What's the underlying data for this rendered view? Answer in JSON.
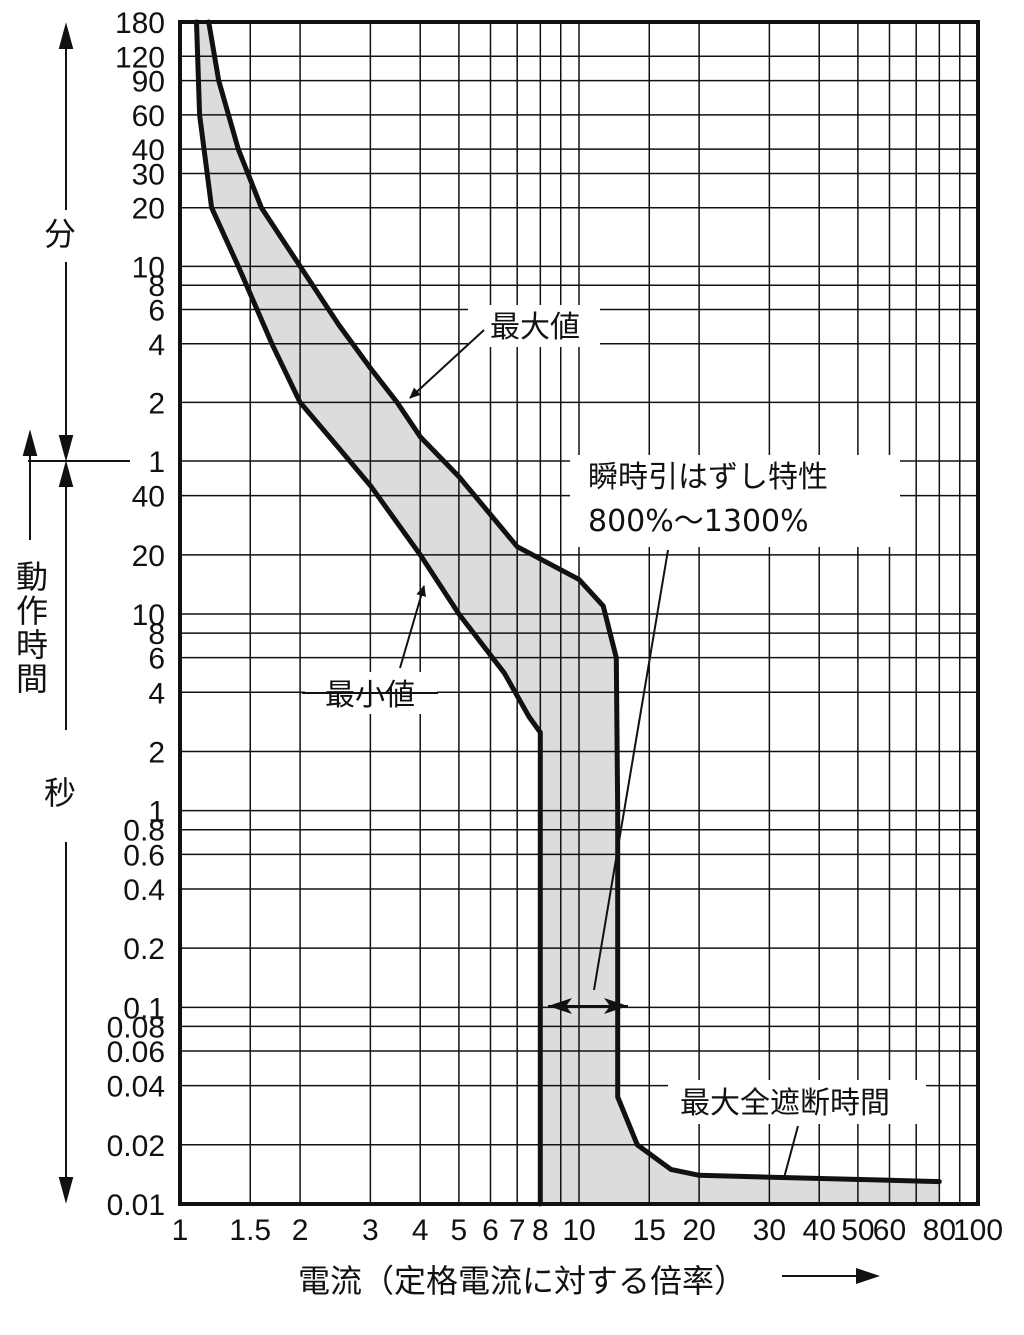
{
  "chart_data": {
    "type": "area",
    "title": "",
    "xscale": "log",
    "yscale": "log",
    "xlim": [
      1,
      100
    ],
    "xlabel": "電流（定格電流に対する倍率）",
    "x_ticks": [
      1,
      1.5,
      2,
      3,
      4,
      5,
      6,
      7,
      8,
      10,
      15,
      20,
      30,
      40,
      50,
      60,
      80,
      100
    ],
    "x_tick_labels": [
      "1",
      "1.5",
      "2",
      "3",
      "4",
      "5",
      "6",
      "7",
      "8",
      "10",
      "15",
      "20",
      "30",
      "40",
      "50",
      "60",
      "80",
      "100"
    ],
    "y_axis_label": "動作時間",
    "y_unit_minutes": "分",
    "y_unit_seconds": "秒",
    "y_ticks_minutes": [
      "180",
      "120",
      "90",
      "60",
      "40",
      "30",
      "20",
      "10",
      "8",
      "6",
      "4",
      "2",
      "1"
    ],
    "y_ticks_seconds": [
      "40",
      "20",
      "10",
      "8",
      "6",
      "4",
      "2",
      "1",
      "0.8",
      "0.6",
      "0.4",
      "0.2",
      "0.1",
      "0.08",
      "0.06",
      "0.04",
      "0.02",
      "0.01"
    ],
    "grid": true,
    "series": [
      {
        "name": "最大値",
        "time_seconds_vs_multiple": [
          [
            1.18,
            10800
          ],
          [
            1.25,
            5400
          ],
          [
            1.4,
            2400
          ],
          [
            1.6,
            1200
          ],
          [
            2,
            600
          ],
          [
            2.5,
            300
          ],
          [
            3,
            180
          ],
          [
            3.5,
            120
          ],
          [
            4,
            80
          ],
          [
            5,
            50
          ],
          [
            7,
            22
          ],
          [
            10,
            15
          ],
          [
            11.5,
            11
          ],
          [
            12.4,
            6
          ],
          [
            12.5,
            1
          ],
          [
            12.5,
            0.1
          ],
          [
            12.5,
            0.035
          ],
          [
            14,
            0.02
          ],
          [
            17,
            0.015
          ],
          [
            20,
            0.014
          ],
          [
            80,
            0.013
          ]
        ]
      },
      {
        "name": "最小値",
        "time_seconds_vs_multiple": [
          [
            1.1,
            10800
          ],
          [
            1.12,
            3600
          ],
          [
            1.2,
            1200
          ],
          [
            1.4,
            600
          ],
          [
            1.7,
            240
          ],
          [
            2,
            120
          ],
          [
            2.5,
            70
          ],
          [
            3,
            45
          ],
          [
            4,
            20
          ],
          [
            5,
            10
          ],
          [
            6.5,
            5
          ],
          [
            7.5,
            3
          ],
          [
            8,
            2.5
          ],
          [
            8,
            0.01
          ]
        ]
      }
    ],
    "annotations": [
      {
        "text": "最大値"
      },
      {
        "text": "最小値"
      },
      {
        "text": "瞬時引はずし特性"
      },
      {
        "text": "800%〜1300%"
      },
      {
        "text": "最大全遮断時間"
      }
    ],
    "colors": {
      "band": "#dcdcdc",
      "curve": "#111111",
      "grid": "#111111"
    }
  }
}
